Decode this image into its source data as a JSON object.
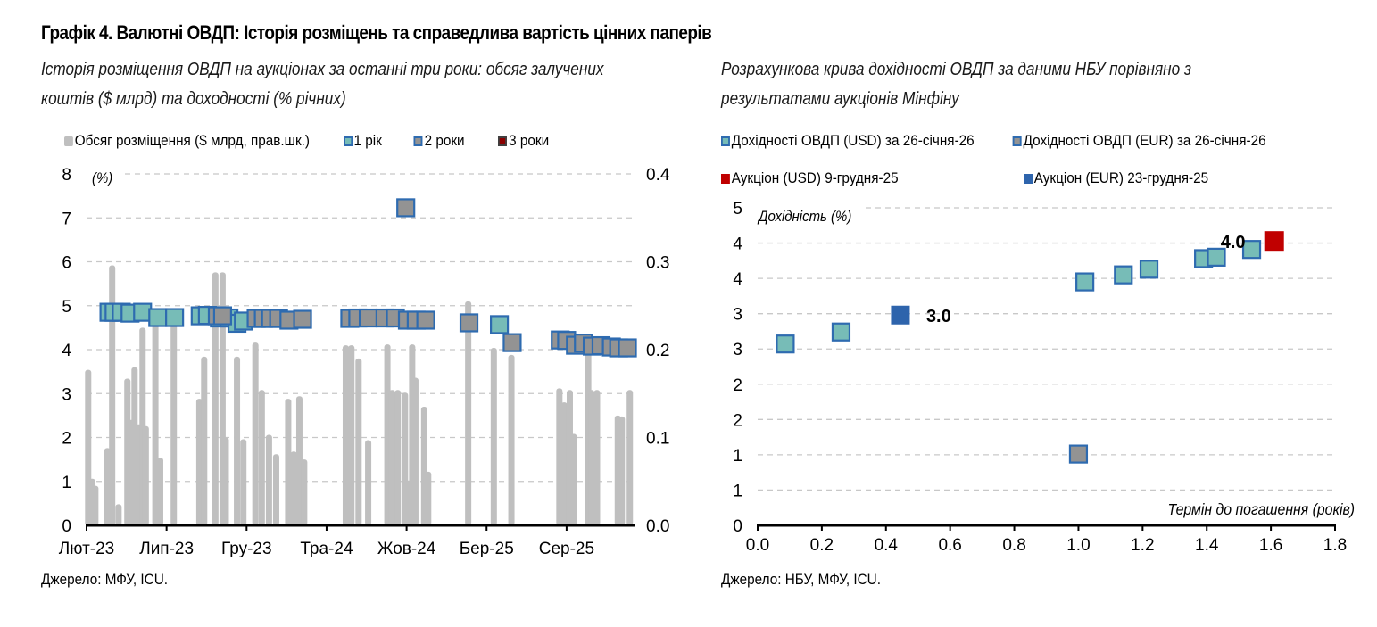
{
  "title": "Графік 4. Валютні ОВДП: Історія розміщень та справедлива вартість цінних паперів",
  "colors": {
    "bar": "#bfbfbf",
    "one_year": "#77bcb7",
    "two_year": "#939393",
    "three_year": "#8b0000",
    "marker_border": "#2e6bb0",
    "auction_usd": "#c00000",
    "auction_eur": "#2e64ac",
    "grid": "#c8c8c8"
  },
  "chart_data": [
    {
      "type": "bar+scatter",
      "subtitle_line1": "Історія розміщення ОВДП на аукціонах за останні три роки: обсяг залучених",
      "subtitle_line2": "коштів ($ млрд) та доходності (% річних)",
      "legend": [
        "Обсяг розміщення ($ млрд, прав.шк.)",
        "1 рік",
        "2 роки",
        "3 роки"
      ],
      "ylabel_left": "(%)",
      "y_left_lim": [
        0,
        8
      ],
      "y_left_ticks": [
        "0",
        "1",
        "2",
        "3",
        "4",
        "5",
        "6",
        "7",
        "8"
      ],
      "y_right_lim": [
        0,
        0.4
      ],
      "y_right_ticks": [
        "0.0",
        "0.1",
        "0.2",
        "0.3",
        "0.4"
      ],
      "x_unit": "months since Лют-23",
      "x_lim": [
        0,
        34.3
      ],
      "x_ticks": [
        {
          "label": "Лют-23",
          "x": 0
        },
        {
          "label": "Лип-23",
          "x": 5
        },
        {
          "label": "Гру-23",
          "x": 10
        },
        {
          "label": "Тра-24",
          "x": 15
        },
        {
          "label": "Жов-24",
          "x": 20
        },
        {
          "label": "Бер-25",
          "x": 25
        },
        {
          "label": "Сер-25",
          "x": 30
        }
      ],
      "bars": [
        {
          "x": 0.1,
          "v": 0.177
        },
        {
          "x": 0.35,
          "v": 0.053
        },
        {
          "x": 0.55,
          "v": 0.045
        },
        {
          "x": 1.3,
          "v": 0.088
        },
        {
          "x": 1.6,
          "v": 0.296
        },
        {
          "x": 2.0,
          "v": 0.024
        },
        {
          "x": 2.55,
          "v": 0.167
        },
        {
          "x": 2.8,
          "v": 0.12
        },
        {
          "x": 3.0,
          "v": 0.18
        },
        {
          "x": 3.25,
          "v": 0.115
        },
        {
          "x": 3.5,
          "v": 0.225
        },
        {
          "x": 3.7,
          "v": 0.113
        },
        {
          "x": 4.3,
          "v": 0.23
        },
        {
          "x": 4.6,
          "v": 0.077
        },
        {
          "x": 5.45,
          "v": 0.232
        },
        {
          "x": 7.05,
          "v": 0.144
        },
        {
          "x": 7.35,
          "v": 0.192
        },
        {
          "x": 8.05,
          "v": 0.288
        },
        {
          "x": 8.5,
          "v": 0.288
        },
        {
          "x": 8.7,
          "v": 0.1
        },
        {
          "x": 9.4,
          "v": 0.192
        },
        {
          "x": 9.8,
          "v": 0.098
        },
        {
          "x": 10.55,
          "v": 0.208
        },
        {
          "x": 10.95,
          "v": 0.154
        },
        {
          "x": 11.4,
          "v": 0.103
        },
        {
          "x": 11.85,
          "v": 0.081
        },
        {
          "x": 12.6,
          "v": 0.144
        },
        {
          "x": 12.95,
          "v": 0.084
        },
        {
          "x": 13.3,
          "v": 0.147
        },
        {
          "x": 13.6,
          "v": 0.075
        },
        {
          "x": 16.2,
          "v": 0.205
        },
        {
          "x": 16.55,
          "v": 0.205
        },
        {
          "x": 17.0,
          "v": 0.19
        },
        {
          "x": 17.6,
          "v": 0.097
        },
        {
          "x": 18.8,
          "v": 0.206
        },
        {
          "x": 19.1,
          "v": 0.154
        },
        {
          "x": 19.45,
          "v": 0.154
        },
        {
          "x": 19.9,
          "v": 0.151
        },
        {
          "x": 20.15,
          "v": 0.051
        },
        {
          "x": 20.35,
          "v": 0.206
        },
        {
          "x": 20.55,
          "v": 0.168
        },
        {
          "x": 21.1,
          "v": 0.135
        },
        {
          "x": 21.35,
          "v": 0.061
        },
        {
          "x": 23.85,
          "v": 0.255
        },
        {
          "x": 25.45,
          "v": 0.202
        },
        {
          "x": 26.55,
          "v": 0.194
        },
        {
          "x": 29.55,
          "v": 0.156
        },
        {
          "x": 29.85,
          "v": 0.14
        },
        {
          "x": 30.2,
          "v": 0.154
        },
        {
          "x": 30.45,
          "v": 0.104
        },
        {
          "x": 31.35,
          "v": 0.202
        },
        {
          "x": 31.55,
          "v": 0.154
        },
        {
          "x": 31.9,
          "v": 0.154
        },
        {
          "x": 33.2,
          "v": 0.125
        },
        {
          "x": 33.45,
          "v": 0.124
        },
        {
          "x": 33.95,
          "v": 0.154
        }
      ],
      "one_year": [
        {
          "x": 1.4,
          "y": 4.85
        },
        {
          "x": 1.72,
          "y": 4.85
        },
        {
          "x": 2.17,
          "y": 4.85
        },
        {
          "x": 2.72,
          "y": 4.83
        },
        {
          "x": 3.5,
          "y": 4.85
        },
        {
          "x": 4.45,
          "y": 4.73
        },
        {
          "x": 5.5,
          "y": 4.73
        },
        {
          "x": 7.1,
          "y": 4.77
        },
        {
          "x": 7.55,
          "y": 4.78
        },
        {
          "x": 8.3,
          "y": 4.72
        },
        {
          "x": 8.9,
          "y": 4.72
        },
        {
          "x": 9.4,
          "y": 4.6
        },
        {
          "x": 9.8,
          "y": 4.65
        },
        {
          "x": 25.8,
          "y": 4.57
        }
      ],
      "two_year": [
        {
          "x": 8.17,
          "y": 4.77
        },
        {
          "x": 8.5,
          "y": 4.77
        },
        {
          "x": 10.6,
          "y": 4.71
        },
        {
          "x": 11.05,
          "y": 4.71
        },
        {
          "x": 11.5,
          "y": 4.71
        },
        {
          "x": 12.0,
          "y": 4.71
        },
        {
          "x": 12.65,
          "y": 4.67
        },
        {
          "x": 13.5,
          "y": 4.69
        },
        {
          "x": 16.45,
          "y": 4.71
        },
        {
          "x": 16.95,
          "y": 4.72
        },
        {
          "x": 17.6,
          "y": 4.72
        },
        {
          "x": 18.65,
          "y": 4.72
        },
        {
          "x": 19.3,
          "y": 4.72
        },
        {
          "x": 20.05,
          "y": 4.67
        },
        {
          "x": 20.6,
          "y": 4.67
        },
        {
          "x": 21.2,
          "y": 4.67
        },
        {
          "x": 19.95,
          "y": 7.23
        },
        {
          "x": 23.9,
          "y": 4.61
        },
        {
          "x": 26.6,
          "y": 4.16
        },
        {
          "x": 29.6,
          "y": 4.22
        },
        {
          "x": 30.0,
          "y": 4.21
        },
        {
          "x": 30.55,
          "y": 4.1
        },
        {
          "x": 31.05,
          "y": 4.15
        },
        {
          "x": 31.6,
          "y": 4.08
        },
        {
          "x": 32.15,
          "y": 4.09
        },
        {
          "x": 32.8,
          "y": 4.06
        },
        {
          "x": 33.25,
          "y": 4.04
        },
        {
          "x": 33.8,
          "y": 4.04
        }
      ],
      "three_year": []
    },
    {
      "type": "scatter",
      "subtitle_line1": "Розрахункова крива дохідності ОВДП за даними НБУ порівняно з",
      "subtitle_line2": "результатами аукціонів Мінфіну",
      "legend": [
        "Дохідності ОВДП (USD) за 26-січня-26",
        "Дохідності ОВДП (EUR) за 26-січня-26",
        "Аукціон (USD) 9-грудня-25",
        "Аукціон (EUR) 23-грудня-25"
      ],
      "ylabel": "Дохідність (%)",
      "xlabel": "Термін до погашення (років)",
      "xlim": [
        0,
        1.8
      ],
      "ylim": [
        0,
        4.5
      ],
      "x_ticks": [
        "0.0",
        "0.2",
        "0.4",
        "0.6",
        "0.8",
        "1.0",
        "1.2",
        "1.4",
        "1.6",
        "1.8"
      ],
      "y_ticks": [
        "0",
        "1",
        "1",
        "2",
        "2",
        "3",
        "3",
        "4",
        "4",
        "5"
      ],
      "series": [
        {
          "name": "Дохідності ОВДП (USD) за 26-січня-26",
          "points": [
            {
              "x": 0.086,
              "y": 2.57
            },
            {
              "x": 0.26,
              "y": 2.74
            },
            {
              "x": 1.02,
              "y": 3.45
            },
            {
              "x": 1.14,
              "y": 3.55
            },
            {
              "x": 1.22,
              "y": 3.63
            },
            {
              "x": 1.39,
              "y": 3.78
            },
            {
              "x": 1.43,
              "y": 3.8
            },
            {
              "x": 1.54,
              "y": 3.91
            }
          ]
        },
        {
          "name": "Дохідності ОВДП (EUR) за 26-січня-26",
          "points": [
            {
              "x": 1.0,
              "y": 1.01
            }
          ]
        },
        {
          "name": "Аукціон (USD) 9-грудня-25",
          "points": [
            {
              "x": 1.61,
              "y": 4.03,
              "label": "4.0"
            }
          ]
        },
        {
          "name": "Аукціон (EUR) 23-грудня-25",
          "points": [
            {
              "x": 0.445,
              "y": 2.98,
              "label": "3.0"
            }
          ]
        }
      ]
    }
  ],
  "sources": {
    "left": "Джерело: МФУ, ICU.",
    "right": "Джерело: НБУ, МФУ, ICU."
  }
}
